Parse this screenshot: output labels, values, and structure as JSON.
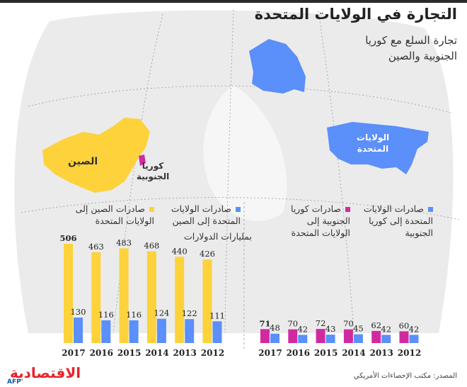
{
  "title": "التجارة في الولايات المتحدة",
  "subtitle": "تجارة السلع مع كوريا الجنوبية والصين",
  "map_labels": {
    "china": "الصين",
    "korea": "كوريا الجنوبية",
    "usa": "الولايات المتحدة"
  },
  "legend": {
    "china_to_us": "صادرات الصين إلى الولايات المتحدة",
    "us_to_china": "صادرات الولايات المتحدة إلى الصين",
    "korea_to_us": "صادرات كوريا الجنوبية إلى الولايات المتحدة",
    "us_to_korea": "صادرات الولايات المتحدة إلى كوريا الجنوبية"
  },
  "unit": "بمليارات الدولارات",
  "source": "المصدر: مكتب الإحصاءات الأمريكي",
  "brand": "الاقتصادية",
  "agency": "AFP",
  "colors": {
    "china": "#fdd23a",
    "us": "#5b8ff9",
    "korea": "#d12aa0",
    "map_land": "#ebebeb",
    "grid": "#9a9a9a"
  },
  "chart_data": [
    {
      "type": "bar",
      "categories": [
        "2017",
        "2016",
        "2015",
        "2014",
        "2013",
        "2012"
      ],
      "series": [
        {
          "name": "صادرات الصين إلى الولايات المتحدة",
          "values": [
            506,
            463,
            483,
            468,
            440,
            426
          ],
          "color": "#fdd23a"
        },
        {
          "name": "صادرات الولايات المتحدة إلى الصين",
          "values": [
            130,
            116,
            116,
            124,
            122,
            111
          ],
          "color": "#5b8ff9"
        }
      ],
      "ylim": [
        0,
        506
      ]
    },
    {
      "type": "bar",
      "categories": [
        "2017",
        "2016",
        "2015",
        "2014",
        "2013",
        "2012"
      ],
      "series": [
        {
          "name": "صادرات كوريا الجنوبية إلى الولايات المتحدة",
          "values": [
            71,
            70,
            72,
            70,
            62,
            60
          ],
          "color": "#d12aa0"
        },
        {
          "name": "صادرات الولايات المتحدة إلى كوريا الجنوبية",
          "values": [
            48,
            42,
            43,
            45,
            42,
            42
          ],
          "color": "#5b8ff9"
        }
      ],
      "ylim": [
        0,
        506
      ]
    }
  ]
}
